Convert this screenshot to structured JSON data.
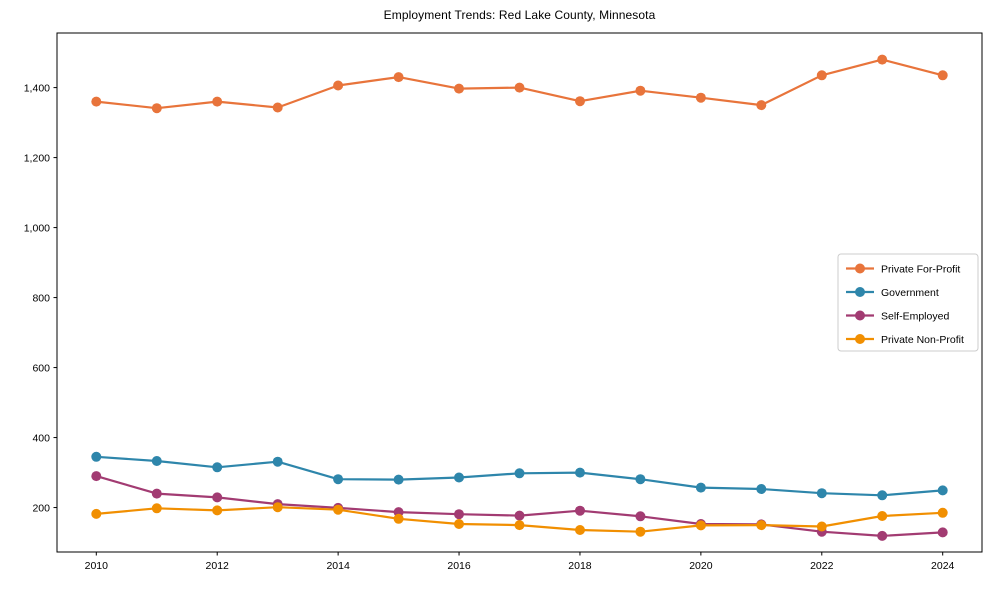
{
  "title": "Employment Trends: Red Lake County, Minnesota",
  "chart_data": {
    "type": "line",
    "title": "Employment Trends: Red Lake County, Minnesota",
    "xlabel": "",
    "ylabel": "",
    "x": [
      2010,
      2011,
      2012,
      2013,
      2014,
      2015,
      2016,
      2017,
      2018,
      2019,
      2020,
      2021,
      2022,
      2023,
      2024
    ],
    "series": [
      {
        "name": "Private For-Profit",
        "color": "#E8743B",
        "values": [
          1360,
          1341,
          1360,
          1343,
          1406,
          1430,
          1397,
          1400,
          1361,
          1391,
          1371,
          1350,
          1435,
          1480,
          1435
        ]
      },
      {
        "name": "Government",
        "color": "#2E86AB",
        "values": [
          345,
          333,
          315,
          331,
          281,
          280,
          286,
          298,
          300,
          281,
          257,
          253,
          241,
          235,
          249
        ]
      },
      {
        "name": "Self-Employed",
        "color": "#A23B72",
        "values": [
          290,
          240,
          229,
          210,
          199,
          187,
          181,
          177,
          191,
          175,
          153,
          152,
          131,
          119,
          129
        ]
      },
      {
        "name": "Private Non-Profit",
        "color": "#F18F01",
        "values": [
          182,
          198,
          192,
          201,
          194,
          168,
          153,
          150,
          136,
          131,
          149,
          150,
          146,
          176,
          185
        ]
      }
    ],
    "xticks": [
      2010,
      2012,
      2014,
      2016,
      2018,
      2020,
      2022,
      2024
    ],
    "yticks": [
      200,
      400,
      600,
      800,
      1000,
      1200,
      1400
    ],
    "ytick_labels": [
      "200",
      "400",
      "600",
      "800",
      "1,000",
      "1,200",
      "1,400"
    ],
    "xlim": [
      2009.35,
      2024.65
    ],
    "ylim": [
      73,
      1556
    ],
    "grid": false,
    "legend_position": "right",
    "axis_color": "#000000"
  }
}
